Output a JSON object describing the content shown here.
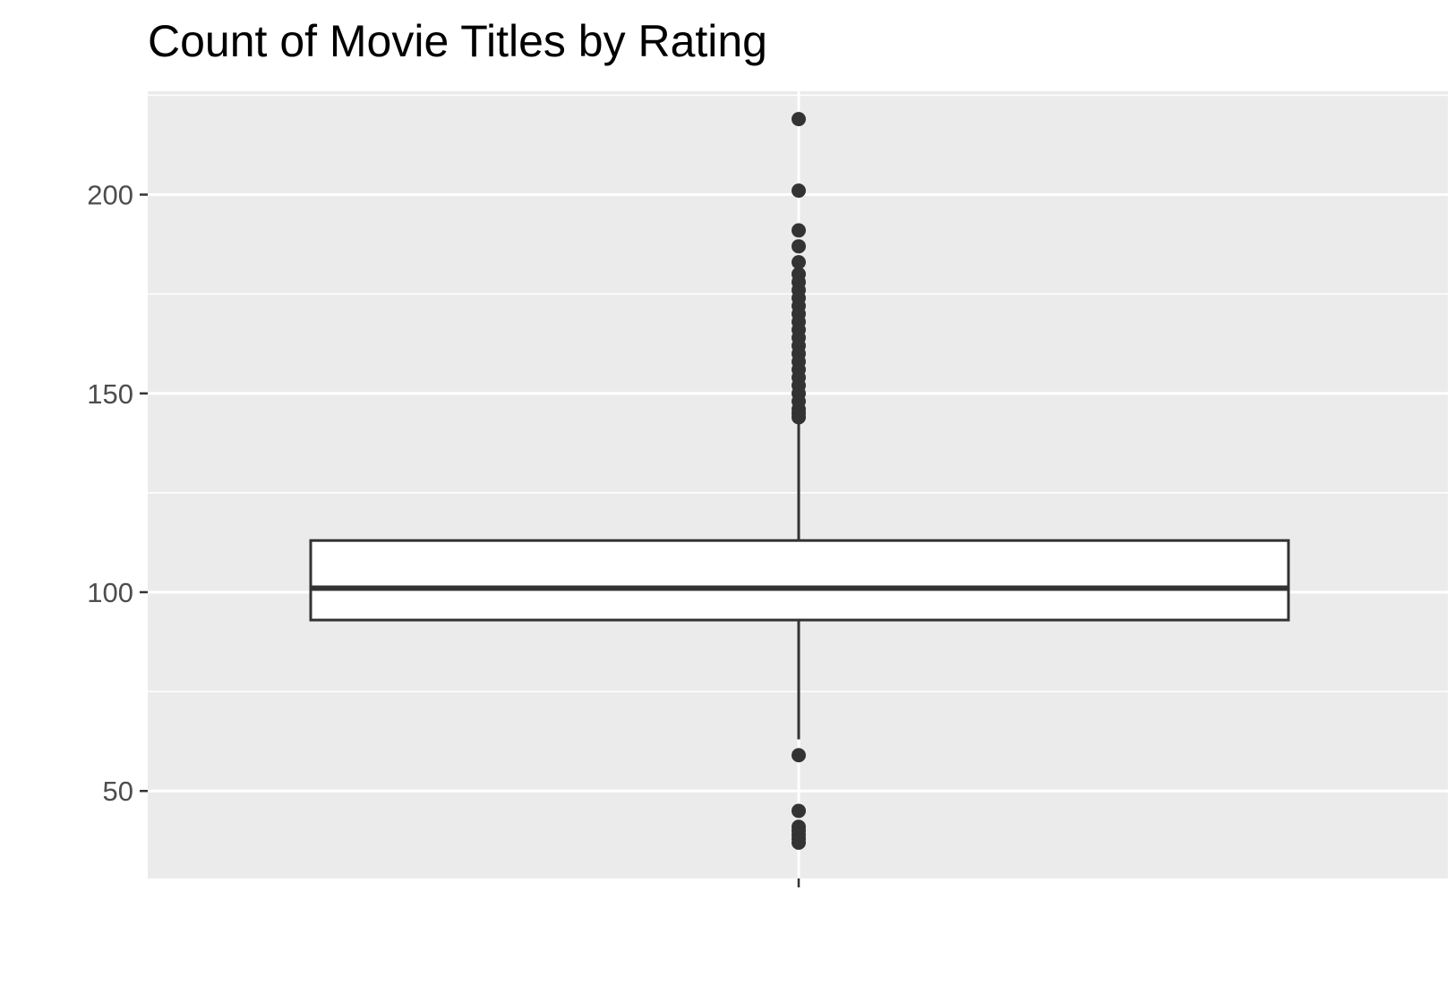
{
  "chart_data": {
    "type": "boxplot",
    "title": "Count of Movie Titles by Rating",
    "xlabel": "",
    "ylabel": "",
    "ylim": [
      28,
      226
    ],
    "yticks": [
      50,
      100,
      150,
      200
    ],
    "ytick_labels": [
      "50",
      "100",
      "150",
      "200"
    ],
    "grid": true,
    "box": {
      "q1": 93,
      "median": 101,
      "q3": 113,
      "whisker_low": 63,
      "whisker_high": 143,
      "outliers": [
        219,
        201,
        191,
        187,
        183,
        180,
        178,
        176,
        174,
        172,
        170,
        168,
        166,
        164,
        162,
        160,
        158,
        156,
        154,
        152,
        150,
        148,
        146,
        145,
        144,
        59,
        45,
        41,
        40,
        39,
        38,
        37
      ]
    },
    "colors": {
      "panel": "#ebebeb",
      "grid": "#ffffff",
      "box_fill": "#ffffff",
      "box_line": "#333333",
      "points": "#333333"
    }
  }
}
